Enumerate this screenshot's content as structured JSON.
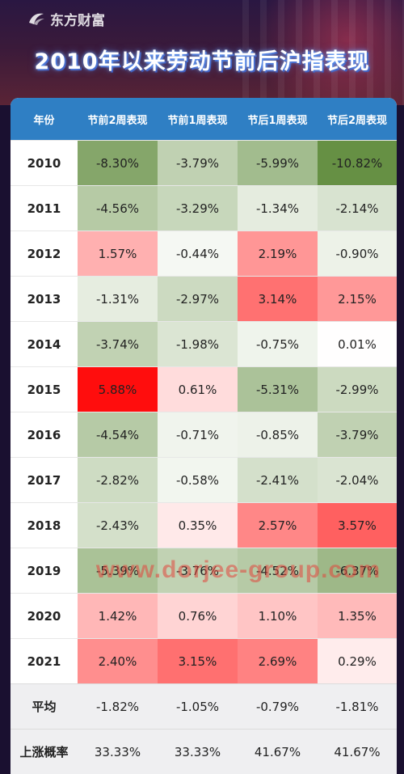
{
  "brand": {
    "name": "东方财富"
  },
  "title": "2010年以来劳动节前后沪指表现",
  "watermark": "www.dorjee-group.com",
  "colors": {
    "header": "#2f7fc4",
    "positive_max": "#ff0000",
    "negative_max": "#5e8a3a"
  },
  "chart_data": {
    "type": "table",
    "columns": [
      "年份",
      "节前2周表现",
      "节前1周表现",
      "节后1周表现",
      "节后2周表现"
    ],
    "rows": [
      {
        "year": "2010",
        "values": [
          "-8.30%",
          "-3.79%",
          "-5.99%",
          "-10.82%"
        ]
      },
      {
        "year": "2011",
        "values": [
          "-4.56%",
          "-3.29%",
          "-1.34%",
          "-2.14%"
        ]
      },
      {
        "year": "2012",
        "values": [
          "1.57%",
          "-0.44%",
          "2.19%",
          "-0.90%"
        ]
      },
      {
        "year": "2013",
        "values": [
          "-1.31%",
          "-2.97%",
          "3.14%",
          "2.15%"
        ]
      },
      {
        "year": "2014",
        "values": [
          "-3.74%",
          "-1.98%",
          "-0.75%",
          "0.01%"
        ]
      },
      {
        "year": "2015",
        "values": [
          "5.88%",
          "0.61%",
          "-5.31%",
          "-2.99%"
        ]
      },
      {
        "year": "2016",
        "values": [
          "-4.54%",
          "-0.71%",
          "-0.85%",
          "-3.79%"
        ]
      },
      {
        "year": "2017",
        "values": [
          "-2.82%",
          "-0.58%",
          "-2.41%",
          "-2.04%"
        ]
      },
      {
        "year": "2018",
        "values": [
          "-2.43%",
          "0.35%",
          "2.57%",
          "3.57%"
        ]
      },
      {
        "year": "2019",
        "values": [
          "-5.39%",
          "-3.76%",
          "-4.52%",
          "-6.37%"
        ]
      },
      {
        "year": "2020",
        "values": [
          "1.42%",
          "0.76%",
          "1.10%",
          "1.35%"
        ]
      },
      {
        "year": "2021",
        "values": [
          "2.40%",
          "3.15%",
          "2.69%",
          "0.29%"
        ]
      }
    ],
    "summary": [
      {
        "label": "平均",
        "values": [
          "-1.82%",
          "-1.05%",
          "-0.79%",
          "-1.81%"
        ]
      },
      {
        "label": "上涨概率",
        "values": [
          "33.33%",
          "33.33%",
          "41.67%",
          "41.67%"
        ]
      }
    ]
  }
}
